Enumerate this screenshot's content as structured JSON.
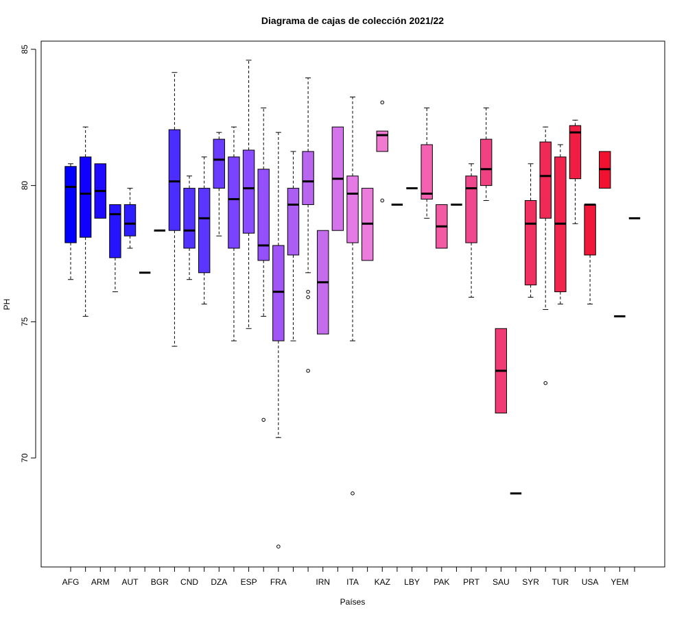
{
  "chart_data": {
    "type": "boxplot",
    "title": "Diagrama de cajas de colección 2021/22",
    "xlabel": "Países",
    "ylabel": "PH",
    "ylim": [
      66.0,
      85.3
    ],
    "yticks": [
      70,
      75,
      80,
      85
    ],
    "grid": false,
    "legend": "none",
    "categories": [
      "AFG",
      "",
      "ARM",
      "",
      "AUT",
      "",
      "BGR",
      "",
      "CND",
      "",
      "DZA",
      "",
      "ESP",
      "",
      "FRA",
      "",
      "",
      "IRN",
      "",
      "ITA",
      "",
      "KAZ",
      "",
      "LBY",
      "",
      "PAK",
      "",
      "PRT",
      "",
      "SAU",
      "",
      "SYR",
      "",
      "TUR",
      "",
      "USA",
      "",
      "YEM",
      ""
    ],
    "boxes": [
      {
        "min": 76.55,
        "q1": 77.9,
        "median": 79.95,
        "q3": 80.7,
        "max": 80.8,
        "outliers": [],
        "color": "#0000FF"
      },
      {
        "min": 75.2,
        "q1": 78.1,
        "median": 79.7,
        "q3": 81.05,
        "max": 82.15,
        "outliers": [],
        "color": "#0F00FF"
      },
      {
        "min": 78.8,
        "q1": 78.8,
        "median": 79.8,
        "q3": 80.8,
        "max": 80.8,
        "outliers": [],
        "color": "#1E0AFF"
      },
      {
        "min": 76.1,
        "q1": 77.35,
        "median": 78.95,
        "q3": 79.3,
        "max": 79.3,
        "outliers": [],
        "color": "#2414FF"
      },
      {
        "min": 77.7,
        "q1": 78.15,
        "median": 78.6,
        "q3": 79.3,
        "max": 79.9,
        "outliers": [],
        "color": "#2D1EFF"
      },
      {
        "min": 76.8,
        "q1": 76.8,
        "median": 76.8,
        "q3": 76.8,
        "max": 76.8,
        "outliers": [],
        "color": "#3A24FF"
      },
      {
        "min": 78.35,
        "q1": 78.35,
        "median": 78.35,
        "q3": 78.35,
        "max": 78.35,
        "outliers": [],
        "color": "#4428FF"
      },
      {
        "min": 74.1,
        "q1": 78.35,
        "median": 80.15,
        "q3": 82.05,
        "max": 84.15,
        "outliers": [],
        "color": "#4B2EFF"
      },
      {
        "min": 76.55,
        "q1": 77.7,
        "median": 78.35,
        "q3": 79.9,
        "max": 80.35,
        "outliers": [],
        "color": "#5232FF"
      },
      {
        "min": 75.65,
        "q1": 76.8,
        "median": 78.8,
        "q3": 79.9,
        "max": 81.05,
        "outliers": [],
        "color": "#5A36FF"
      },
      {
        "min": 78.15,
        "q1": 79.9,
        "median": 80.95,
        "q3": 81.7,
        "max": 81.95,
        "outliers": [],
        "color": "#6A3CFF"
      },
      {
        "min": 74.3,
        "q1": 77.7,
        "median": 79.5,
        "q3": 81.05,
        "max": 82.15,
        "outliers": [],
        "color": "#7A44FF"
      },
      {
        "min": 74.75,
        "q1": 78.25,
        "median": 79.9,
        "q3": 81.3,
        "max": 84.6,
        "outliers": [],
        "color": "#8A4CFF"
      },
      {
        "min": 75.2,
        "q1": 77.25,
        "median": 77.8,
        "q3": 80.6,
        "max": 82.85,
        "outliers": [
          71.4
        ],
        "color": "#9450FA"
      },
      {
        "min": 70.75,
        "q1": 74.3,
        "median": 76.1,
        "q3": 77.8,
        "max": 81.95,
        "outliers": [
          66.75
        ],
        "color": "#A056F5"
      },
      {
        "min": 74.3,
        "q1": 77.45,
        "median": 79.3,
        "q3": 79.9,
        "max": 81.25,
        "outliers": [],
        "color": "#AA5EF2"
      },
      {
        "min": 76.8,
        "q1": 79.3,
        "median": 80.15,
        "q3": 81.25,
        "max": 83.95,
        "outliers": [
          76.1,
          75.9,
          73.2
        ],
        "color": "#B866F0"
      },
      {
        "min": 74.55,
        "q1": 74.55,
        "median": 76.45,
        "q3": 78.35,
        "max": 78.35,
        "outliers": [],
        "color": "#C46CEC"
      },
      {
        "min": 78.35,
        "q1": 78.35,
        "median": 80.25,
        "q3": 82.15,
        "max": 82.15,
        "outliers": [],
        "color": "#D474EA"
      },
      {
        "min": 74.3,
        "q1": 77.9,
        "median": 79.7,
        "q3": 80.35,
        "max": 83.25,
        "outliers": [
          68.7
        ],
        "color": "#E47AE6"
      },
      {
        "min": 77.25,
        "q1": 77.25,
        "median": 78.6,
        "q3": 79.9,
        "max": 79.9,
        "outliers": [],
        "color": "#EC7CDC"
      },
      {
        "min": 81.25,
        "q1": 81.25,
        "median": 81.85,
        "q3": 82.0,
        "max": 82.0,
        "outliers": [
          83.05,
          79.45
        ],
        "color": "#F07AD0"
      },
      {
        "min": 79.3,
        "q1": 79.3,
        "median": 79.3,
        "q3": 79.3,
        "max": 79.3,
        "outliers": [],
        "color": "#F274C4"
      },
      {
        "min": 79.9,
        "q1": 79.9,
        "median": 79.9,
        "q3": 79.9,
        "max": 79.9,
        "outliers": [],
        "color": "#F46EB8"
      },
      {
        "min": 78.8,
        "q1": 79.5,
        "median": 79.7,
        "q3": 81.5,
        "max": 82.85,
        "outliers": [],
        "color": "#F262B0"
      },
      {
        "min": 77.7,
        "q1": 77.7,
        "median": 78.5,
        "q3": 79.3,
        "max": 79.3,
        "outliers": [],
        "color": "#F25AA4"
      },
      {
        "min": 79.3,
        "q1": 79.3,
        "median": 79.3,
        "q3": 79.3,
        "max": 79.3,
        "outliers": [],
        "color": "#F25098"
      },
      {
        "min": 75.9,
        "q1": 77.9,
        "median": 79.9,
        "q3": 80.35,
        "max": 80.8,
        "outliers": [],
        "color": "#F0488C"
      },
      {
        "min": 79.45,
        "q1": 80.0,
        "median": 80.6,
        "q3": 81.7,
        "max": 82.85,
        "outliers": [],
        "color": "#F04282"
      },
      {
        "min": 71.65,
        "q1": 71.65,
        "median": 73.2,
        "q3": 74.75,
        "max": 74.75,
        "outliers": [],
        "color": "#F03C74"
      },
      {
        "min": 68.7,
        "q1": 68.7,
        "median": 68.7,
        "q3": 68.7,
        "max": 68.7,
        "outliers": [],
        "color": "#F0366A"
      },
      {
        "min": 75.9,
        "q1": 76.35,
        "median": 78.6,
        "q3": 79.45,
        "max": 80.8,
        "outliers": [],
        "color": "#F03060"
      },
      {
        "min": 75.45,
        "q1": 78.8,
        "median": 80.35,
        "q3": 81.6,
        "max": 82.15,
        "outliers": [
          72.75
        ],
        "color": "#F02A56"
      },
      {
        "min": 75.65,
        "q1": 76.1,
        "median": 78.6,
        "q3": 81.05,
        "max": 81.5,
        "outliers": [],
        "color": "#F0244C"
      },
      {
        "min": 78.6,
        "q1": 80.25,
        "median": 81.95,
        "q3": 82.2,
        "max": 82.4,
        "outliers": [],
        "color": "#F01E42"
      },
      {
        "min": 75.65,
        "q1": 77.45,
        "median": 79.3,
        "q3": 79.3,
        "max": 79.3,
        "outliers": [],
        "color": "#F01838"
      },
      {
        "min": 79.9,
        "q1": 79.9,
        "median": 80.6,
        "q3": 81.25,
        "max": 81.25,
        "outliers": [],
        "color": "#F01230"
      },
      {
        "min": 75.2,
        "q1": 75.2,
        "median": 75.2,
        "q3": 75.2,
        "max": 75.2,
        "outliers": [],
        "color": "#F00C26"
      },
      {
        "min": 78.8,
        "q1": 78.8,
        "median": 78.8,
        "q3": 78.8,
        "max": 78.8,
        "outliers": [],
        "color": "#F0061C"
      }
    ]
  }
}
